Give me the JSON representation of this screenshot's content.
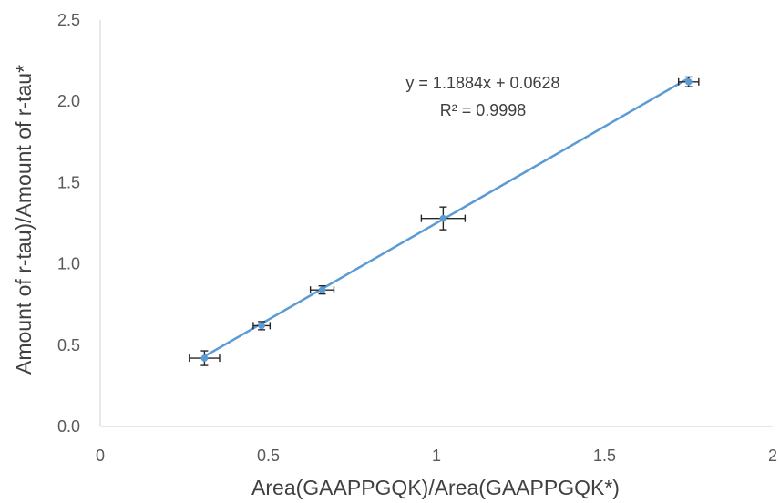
{
  "chart_data": {
    "type": "scatter",
    "xlabel": "Area(GAAPPGQK)/Area(GAAPPGQK*)",
    "ylabel": "Amount of r-tau)/Amount of r-tau*",
    "xlim": [
      0,
      2
    ],
    "ylim": [
      0,
      2.5
    ],
    "x_ticks": [
      "0",
      "0.5",
      "1",
      "1.5",
      "2"
    ],
    "y_ticks": [
      "0.0",
      "0.5",
      "1.0",
      "1.5",
      "2.0",
      "2.5"
    ],
    "grid": false,
    "points": [
      {
        "x": 0.31,
        "y": 0.42,
        "x_err": 0.045,
        "y_err": 0.045
      },
      {
        "x": 0.48,
        "y": 0.62,
        "x_err": 0.025,
        "y_err": 0.025
      },
      {
        "x": 0.66,
        "y": 0.84,
        "x_err": 0.035,
        "y_err": 0.025
      },
      {
        "x": 1.02,
        "y": 1.28,
        "x_err": 0.065,
        "y_err": 0.07
      },
      {
        "x": 1.75,
        "y": 2.12,
        "x_err": 0.03,
        "y_err": 0.03
      }
    ],
    "trendline": {
      "slope": 1.1884,
      "intercept": 0.0628,
      "x_range": [
        0.31,
        1.75
      ]
    },
    "annotation": {
      "equation": "y = 1.1884x + 0.0628",
      "r_squared": "R² = 0.9998"
    },
    "colors": {
      "series": "#5b9bd5",
      "error_bar": "#262626",
      "axis": "#d9d9d9"
    }
  }
}
